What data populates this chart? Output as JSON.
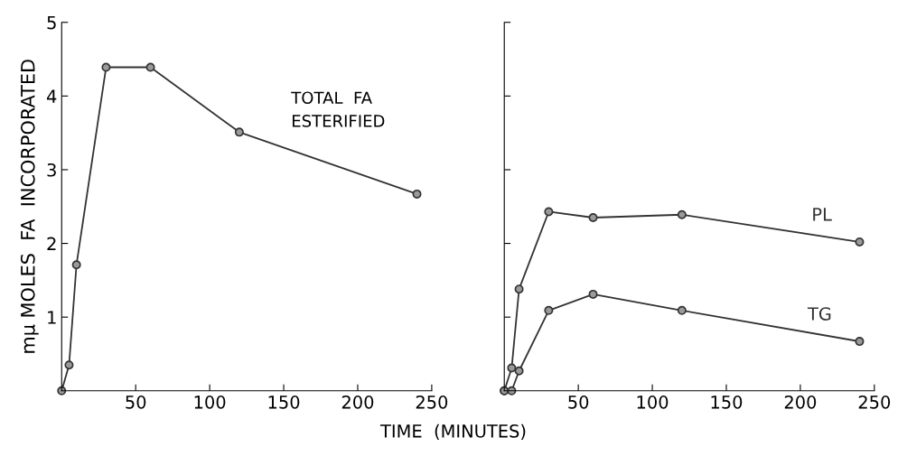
{
  "chart_data": [
    {
      "type": "line",
      "xlabel": "TIME  (MINUTES)",
      "ylabel": "mμ MOLES  FA  INCORPORATED",
      "annotations": [
        "TOTAL  FA\nESTERIFIED"
      ],
      "marker": "circle",
      "grid": false,
      "legend": false,
      "xlim": [
        0,
        250
      ],
      "xticks": [
        50,
        100,
        150,
        200,
        250
      ],
      "ylim": [
        0,
        5
      ],
      "yticks": [
        1,
        2,
        3,
        4,
        5
      ],
      "series": [
        {
          "color": "#333333",
          "x": [
            0,
            5,
            10,
            30,
            60,
            120,
            240
          ],
          "values": [
            0,
            0.35,
            1.71,
            4.39,
            4.39,
            3.51,
            2.67
          ]
        }
      ]
    },
    {
      "type": "line",
      "marker": "circle",
      "grid": false,
      "legend": false,
      "tick_labels": "x",
      "xlim": [
        0,
        250
      ],
      "xticks": [
        50,
        100,
        150,
        200,
        250
      ],
      "ylim": [
        0,
        5
      ],
      "yticks": [
        {
          "value": 1,
          "label": null
        },
        {
          "value": 2,
          "label": null
        },
        {
          "value": 3,
          "label": null
        },
        {
          "value": 4,
          "label": null
        },
        {
          "value": 5,
          "label": null
        }
      ],
      "series": [
        {
          "name": "PL",
          "color": "#333333",
          "x": [
            0,
            5,
            10,
            30,
            60,
            120,
            240
          ],
          "values": [
            0,
            0.31,
            1.38,
            2.43,
            2.35,
            2.39,
            2.02
          ]
        },
        {
          "name": "TG",
          "color": "#333333",
          "x": [
            0,
            5,
            10,
            30,
            60,
            120,
            240
          ],
          "values": [
            0,
            0,
            0.27,
            1.09,
            1.31,
            1.09,
            0.67
          ]
        }
      ]
    }
  ]
}
